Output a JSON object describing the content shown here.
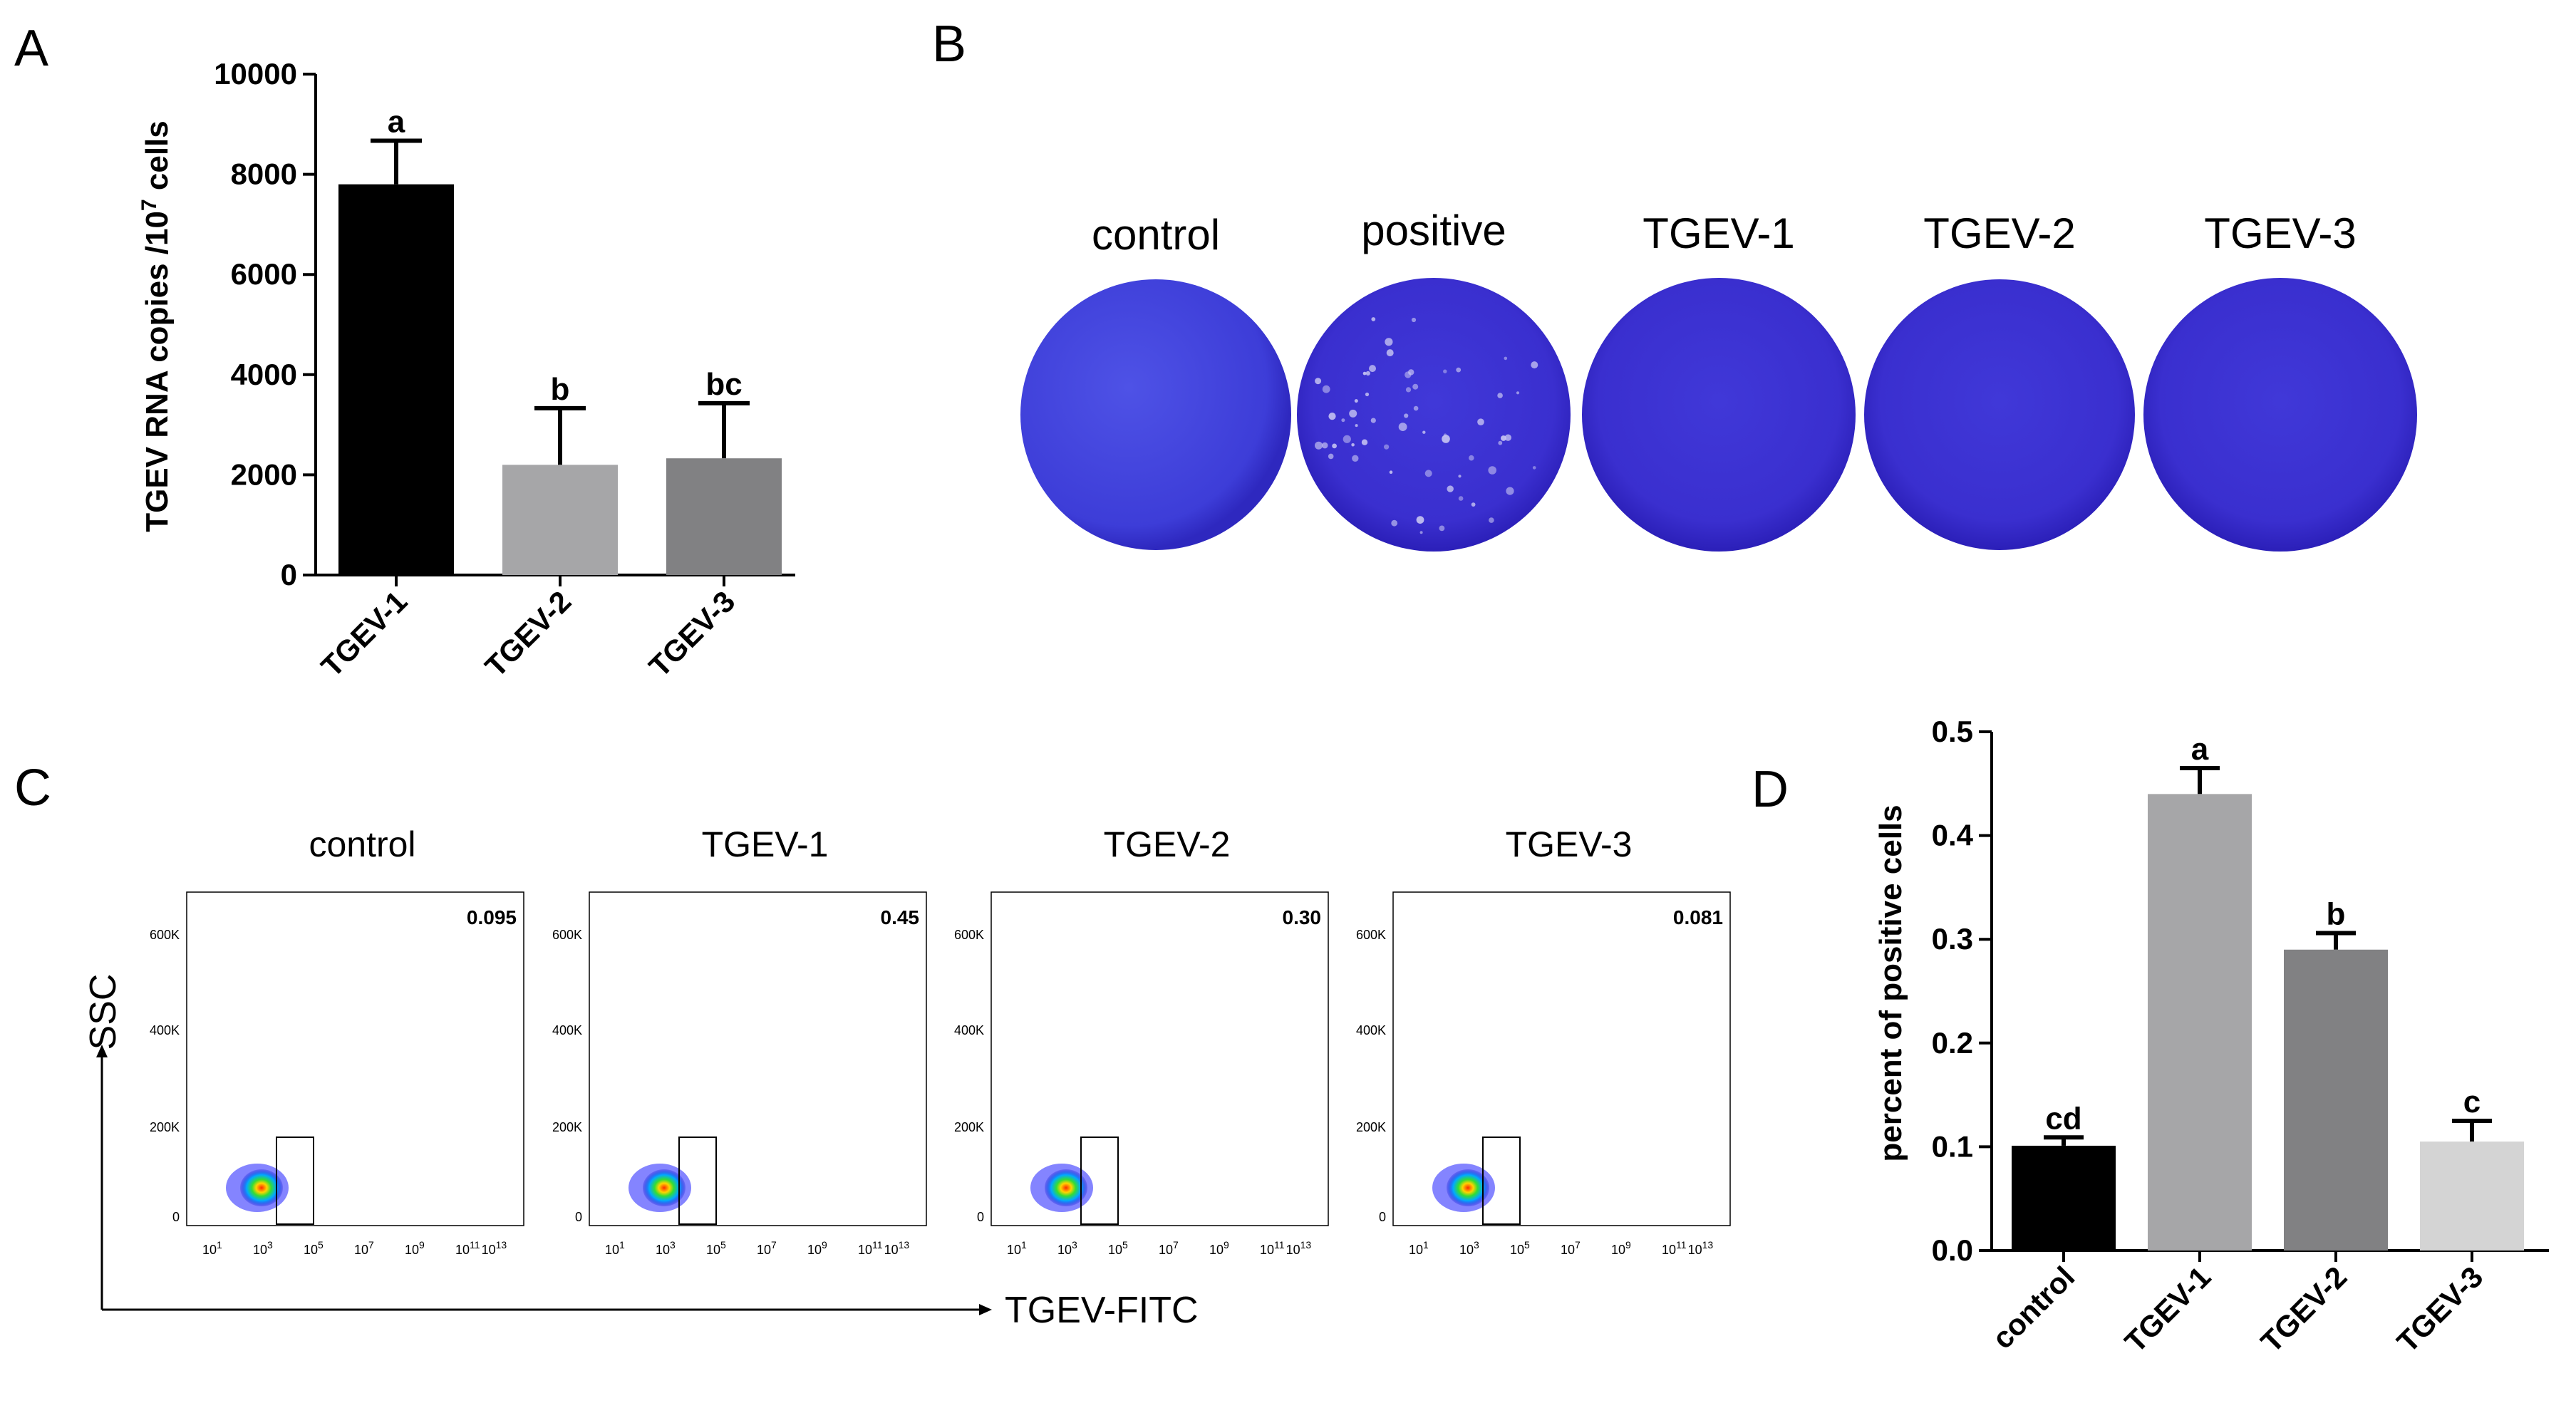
{
  "panels": {
    "a": "A",
    "b": "B",
    "c": "C",
    "d": "D"
  },
  "colors": {
    "black": "#000000",
    "light_gray": "#a6a6a8",
    "mid_gray": "#818183",
    "pale_gray": "#d4d4d4",
    "plate_blue": "#3d33d6"
  },
  "chart_data": [
    {
      "id": "A",
      "type": "bar",
      "title": "",
      "xlabel": "",
      "ylabel": "TGEV RNA copies /10",
      "ylabel_sup": "7",
      "ylabel_suffix": " cells",
      "ylim": [
        0,
        10000
      ],
      "yticks": [
        0,
        2000,
        4000,
        6000,
        8000,
        10000
      ],
      "yticks_text": [
        "0",
        "2000",
        "4000",
        "6000",
        "8000",
        "10000"
      ],
      "categories": [
        "TGEV-1",
        "TGEV-2",
        "TGEV-3"
      ],
      "values": [
        7800,
        2200,
        2330
      ],
      "errors": [
        870,
        1130,
        1100
      ],
      "letters": [
        "a",
        "b",
        "bc"
      ]
    },
    {
      "id": "D",
      "type": "bar",
      "title": "",
      "xlabel": "",
      "ylabel": "percent of positive cells",
      "ylim": [
        0,
        0.5
      ],
      "yticks": [
        0,
        0.1,
        0.2,
        0.3,
        0.4,
        0.5
      ],
      "yticks_text": [
        "0.0",
        "0.1",
        "0.2",
        "0.3",
        "0.4",
        "0.5"
      ],
      "categories": [
        "control",
        "TGEV-1",
        "TGEV-2",
        "TGEV-3"
      ],
      "values": [
        0.101,
        0.44,
        0.29,
        0.105
      ],
      "errors": [
        0.008,
        0.025,
        0.016,
        0.02
      ],
      "letters": [
        "cd",
        "a",
        "b",
        "c"
      ]
    }
  ],
  "plates": [
    "control",
    "positive",
    "TGEV-1",
    "TGEV-2",
    "TGEV-3"
  ],
  "flow": {
    "y_axis_label": "SSC",
    "x_axis_label": "TGEV-FITC",
    "y_ticks": [
      "600K",
      "400K",
      "200K",
      "0"
    ],
    "x_ticks": [
      "10",
      "10",
      "10",
      "10",
      "10",
      "10"
    ],
    "x_tick_exponents": [
      "1",
      "3",
      "5",
      "7",
      "9",
      "11"
    ],
    "x_tick_last": "13",
    "samples": [
      {
        "name": "control",
        "gate_value": "0.095"
      },
      {
        "name": "TGEV-1",
        "gate_value": "0.45"
      },
      {
        "name": "TGEV-2",
        "gate_value": "0.30"
      },
      {
        "name": "TGEV-3",
        "gate_value": "0.081"
      }
    ]
  }
}
